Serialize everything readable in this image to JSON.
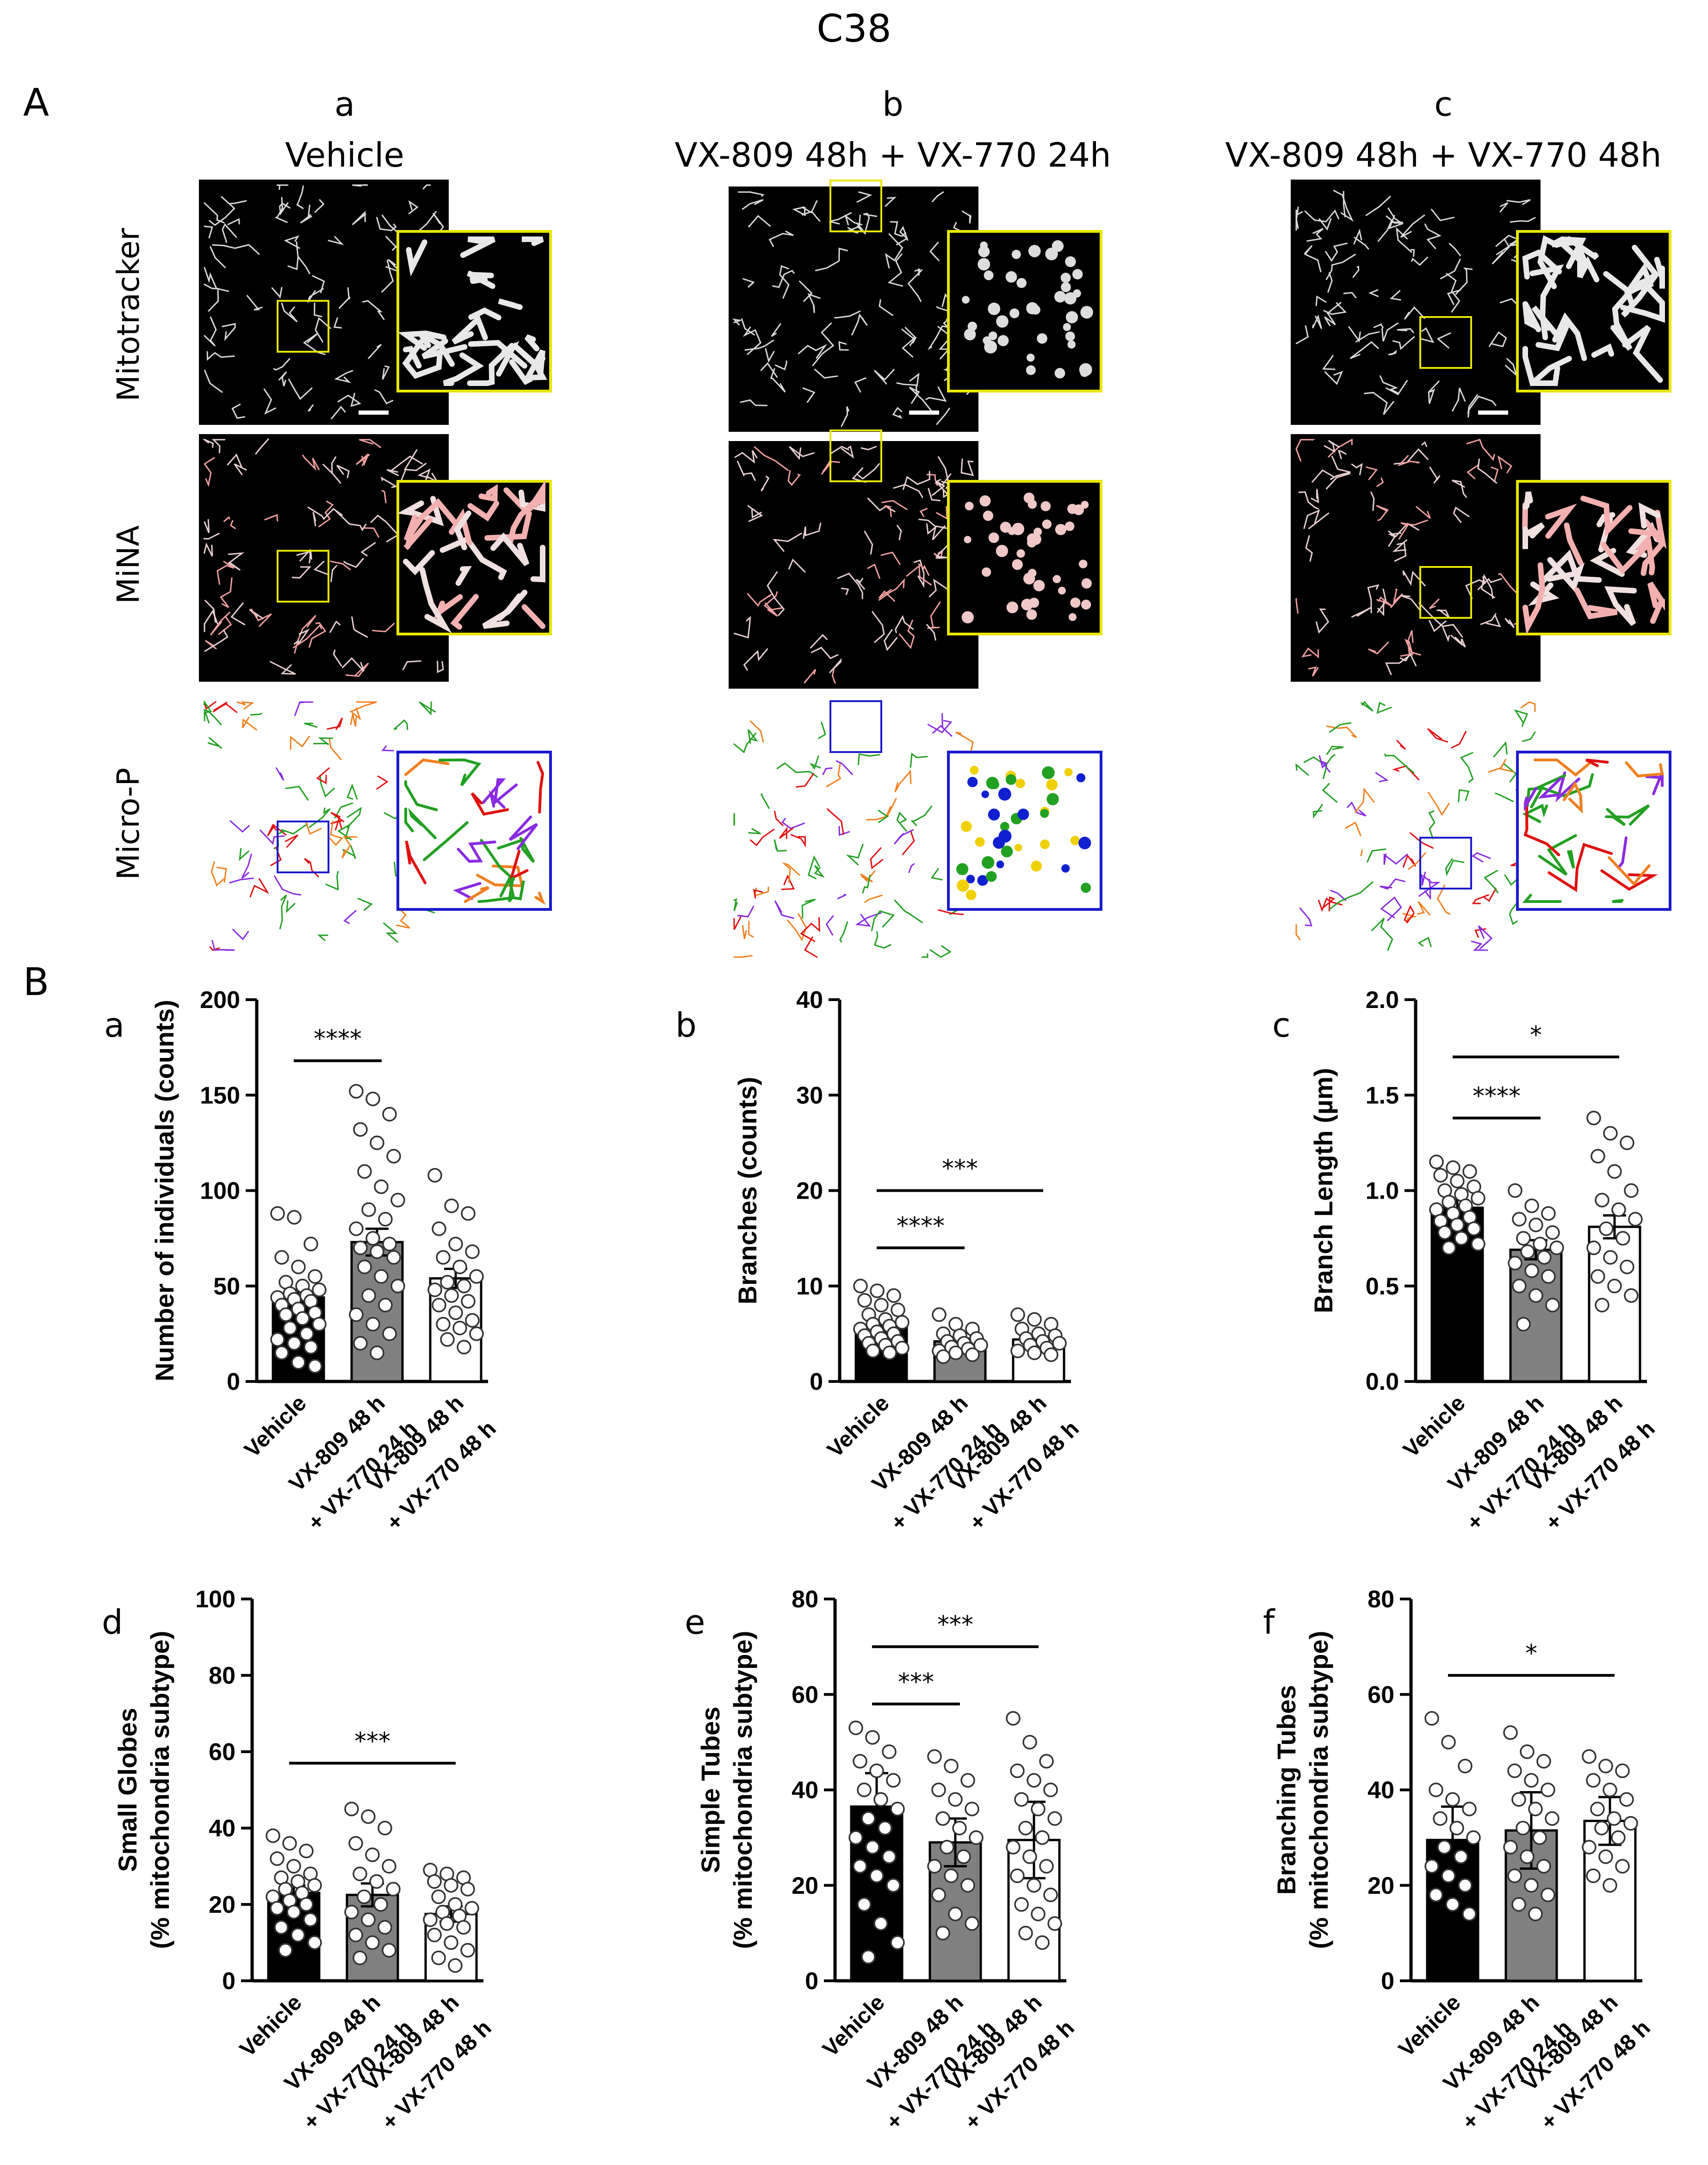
{
  "figure_title": "C38",
  "panel_a_label": "A",
  "panel_b_label": "B",
  "panel_a": {
    "columns": [
      {
        "letter": "a",
        "title": "Vehicle"
      },
      {
        "letter": "b",
        "title": "VX-809 48h + VX-770 24h"
      },
      {
        "letter": "c",
        "title": "VX-809 48h + VX-770 48h"
      }
    ],
    "rows": [
      "Mitotracker",
      "MiNA",
      "Micro-P"
    ]
  },
  "colors": {
    "black_bar": "#000000",
    "gray_bar": "#808080",
    "white_bar": "#ffffff",
    "inset_yellow": "#e6e600",
    "inset_blue": "#1a1acc",
    "microp_purple": "#8a2be2",
    "microp_green": "#22a022",
    "microp_red": "#e01010",
    "microp_orange": "#f08020",
    "microp_yellow": "#f0d000",
    "microp_blue": "#1020d0"
  },
  "chart_data": [
    {
      "letter": "a",
      "type": "bar",
      "title": "",
      "ylabel": "Number of individuals (counts)",
      "ylabel2": "",
      "ylim": [
        0,
        200
      ],
      "yticks": [
        "0",
        "50",
        "100",
        "150",
        "200"
      ],
      "categories": [
        [
          "Vehicle"
        ],
        [
          "VX-809 48 h",
          "+ VX-770 24 h"
        ],
        [
          "VX-809 48 h",
          "+ VX-770 48 h"
        ]
      ],
      "values": [
        44,
        73,
        54
      ],
      "errors": [
        4,
        7,
        5
      ],
      "points": [
        [
          88,
          86,
          72,
          65,
          60,
          55,
          52,
          50,
          48,
          46,
          45,
          44,
          43,
          42,
          40,
          38,
          36,
          35,
          33,
          30,
          28,
          25,
          22,
          20,
          18,
          15,
          10,
          8
        ],
        [
          152,
          148,
          140,
          132,
          125,
          118,
          110,
          102,
          95,
          90,
          85,
          80,
          75,
          72,
          70,
          68,
          65,
          60,
          55,
          50,
          45,
          40,
          35,
          30,
          25,
          20,
          15
        ],
        [
          108,
          92,
          88,
          80,
          72,
          68,
          65,
          60,
          55,
          52,
          50,
          48,
          45,
          42,
          40,
          36,
          32,
          30,
          28,
          25,
          22,
          18
        ]
      ],
      "significance": [
        {
          "from": 0,
          "to": 1,
          "label": "****",
          "y": 168
        }
      ]
    },
    {
      "letter": "b",
      "type": "bar",
      "title": "",
      "ylabel": "Branches (counts)",
      "ylabel2": "",
      "ylim": [
        0,
        40
      ],
      "yticks": [
        "0",
        "10",
        "20",
        "30",
        "40"
      ],
      "categories": [
        [
          "Vehicle"
        ],
        [
          "VX-809 48 h",
          "+ VX-770 24 h"
        ],
        [
          "VX-809 48 h",
          "+ VX-770 48 h"
        ]
      ],
      "values": [
        5.7,
        4.2,
        4.4
      ],
      "errors": [
        0.4,
        0.3,
        0.3
      ],
      "points": [
        [
          10,
          9.5,
          9,
          8.5,
          8,
          7.5,
          7,
          6.5,
          6.2,
          6,
          5.8,
          5.5,
          5.2,
          5,
          4.8,
          4.5,
          4.2,
          4,
          3.8,
          3.5,
          3.2,
          3
        ],
        [
          7,
          6,
          5.5,
          5,
          4.8,
          4.5,
          4.2,
          4,
          3.8,
          3.6,
          3.4,
          3.2,
          3,
          2.8,
          2.6
        ],
        [
          7,
          6.5,
          6,
          5.5,
          5,
          4.8,
          4.5,
          4.2,
          4,
          3.8,
          3.5,
          3.2,
          3,
          2.8
        ]
      ],
      "significance": [
        {
          "from": 0,
          "to": 1,
          "label": "****",
          "y": 14
        },
        {
          "from": 0,
          "to": 2,
          "label": "***",
          "y": 20
        }
      ]
    },
    {
      "letter": "c",
      "type": "bar",
      "title": "",
      "ylabel": "Branch Length (µm)",
      "ylabel2": "",
      "ylim": [
        0,
        2.0
      ],
      "yticks": [
        "0.0",
        "0.5",
        "1.0",
        "1.5",
        "2.0"
      ],
      "categories": [
        [
          "Vehicle"
        ],
        [
          "VX-809 48 h",
          "+ VX-770 24 h"
        ],
        [
          "VX-809 48 h",
          "+ VX-770 48 h"
        ]
      ],
      "values": [
        0.91,
        0.69,
        0.81
      ],
      "errors": [
        0.04,
        0.05,
        0.06
      ],
      "points": [
        [
          1.15,
          1.12,
          1.1,
          1.08,
          1.05,
          1.02,
          1.0,
          0.98,
          0.96,
          0.94,
          0.92,
          0.9,
          0.88,
          0.86,
          0.84,
          0.82,
          0.8,
          0.78,
          0.75,
          0.72,
          0.7
        ],
        [
          1.0,
          0.92,
          0.88,
          0.85,
          0.82,
          0.78,
          0.75,
          0.72,
          0.7,
          0.68,
          0.65,
          0.62,
          0.58,
          0.55,
          0.5,
          0.45,
          0.4,
          0.3
        ],
        [
          1.38,
          1.3,
          1.25,
          1.18,
          1.1,
          1.0,
          0.95,
          0.9,
          0.85,
          0.8,
          0.75,
          0.7,
          0.65,
          0.6,
          0.55,
          0.5,
          0.45,
          0.4
        ]
      ],
      "significance": [
        {
          "from": 0,
          "to": 1,
          "label": "****",
          "y": 1.38
        },
        {
          "from": 0,
          "to": 2,
          "label": "*",
          "y": 1.7
        }
      ]
    },
    {
      "letter": "d",
      "type": "bar",
      "title": "",
      "ylabel": "Small Globes",
      "ylabel2": "(% mitochondria subtype)",
      "ylim": [
        0,
        100
      ],
      "yticks": [
        "0",
        "20",
        "40",
        "60",
        "80",
        "100"
      ],
      "categories": [
        [
          "Vehicle"
        ],
        [
          "VX-809 48 h",
          "+ VX-770 24 h"
        ],
        [
          "VX-809 48 h",
          "+ VX-770 48 h"
        ]
      ],
      "values": [
        23,
        22.5,
        17.5
      ],
      "errors": [
        2,
        3,
        2
      ],
      "points": [
        [
          38,
          36,
          34,
          32,
          30,
          28,
          27,
          26,
          25,
          24,
          23,
          22,
          21,
          20,
          19,
          18,
          16,
          14,
          12,
          10,
          8
        ],
        [
          45,
          43,
          40,
          36,
          33,
          30,
          28,
          26,
          24,
          22,
          20,
          18,
          16,
          14,
          12,
          10,
          8,
          6
        ],
        [
          29,
          28,
          27,
          26,
          25,
          24,
          22,
          20,
          19,
          18,
          17,
          16,
          15,
          14,
          12,
          10,
          8,
          6,
          4
        ]
      ],
      "significance": [
        {
          "from": 0,
          "to": 2,
          "label": "***",
          "y": 57
        }
      ]
    },
    {
      "letter": "e",
      "type": "bar",
      "title": "",
      "ylabel": "Simple Tubes",
      "ylabel2": "(% mitochondria subtype)",
      "ylim": [
        0,
        80
      ],
      "yticks": [
        "0",
        "20",
        "40",
        "60",
        "80"
      ],
      "categories": [
        [
          "Vehicle"
        ],
        [
          "VX-809 48 h",
          "+ VX-770 24 h"
        ],
        [
          "VX-809 48 h",
          "+ VX-770 48 h"
        ]
      ],
      "values": [
        36.5,
        29,
        29.5
      ],
      "errors": [
        7,
        5,
        8
      ],
      "points": [
        [
          53,
          51,
          48,
          46,
          44,
          42,
          40,
          38,
          36,
          34,
          32,
          30,
          28,
          26,
          24,
          22,
          20,
          16,
          12,
          8,
          5
        ],
        [
          47,
          45,
          42,
          40,
          38,
          36,
          34,
          32,
          30,
          28,
          26,
          24,
          22,
          20,
          18,
          14,
          12,
          10
        ],
        [
          55,
          50,
          46,
          44,
          42,
          40,
          38,
          36,
          34,
          32,
          30,
          28,
          26,
          24,
          22,
          20,
          18,
          16,
          14,
          12,
          10,
          8
        ]
      ],
      "significance": [
        {
          "from": 0,
          "to": 1,
          "label": "***",
          "y": 58
        },
        {
          "from": 0,
          "to": 2,
          "label": "***",
          "y": 70
        }
      ]
    },
    {
      "letter": "f",
      "type": "bar",
      "title": "",
      "ylabel": "Branching Tubes",
      "ylabel2": "(% mitochondria subtype)",
      "ylim": [
        0,
        80
      ],
      "yticks": [
        "0",
        "20",
        "40",
        "60",
        "80"
      ],
      "categories": [
        [
          "Vehicle"
        ],
        [
          "VX-809 48 h",
          "+ VX-770 24 h"
        ],
        [
          "VX-809 48 h",
          "+ VX-770 48 h"
        ]
      ],
      "values": [
        29.5,
        31.5,
        33.5
      ],
      "errors": [
        7,
        8,
        5
      ],
      "points": [
        [
          55,
          50,
          45,
          40,
          38,
          36,
          34,
          32,
          30,
          28,
          26,
          24,
          22,
          20,
          18,
          16,
          14
        ],
        [
          52,
          48,
          46,
          44,
          42,
          40,
          38,
          36,
          34,
          32,
          30,
          28,
          26,
          24,
          22,
          20,
          18,
          16,
          14
        ],
        [
          47,
          45,
          44,
          42,
          40,
          38,
          36,
          34,
          33,
          32,
          30,
          28,
          26,
          24,
          22,
          20
        ]
      ],
      "significance": [
        {
          "from": 0,
          "to": 2,
          "label": "*",
          "y": 64
        }
      ]
    }
  ]
}
